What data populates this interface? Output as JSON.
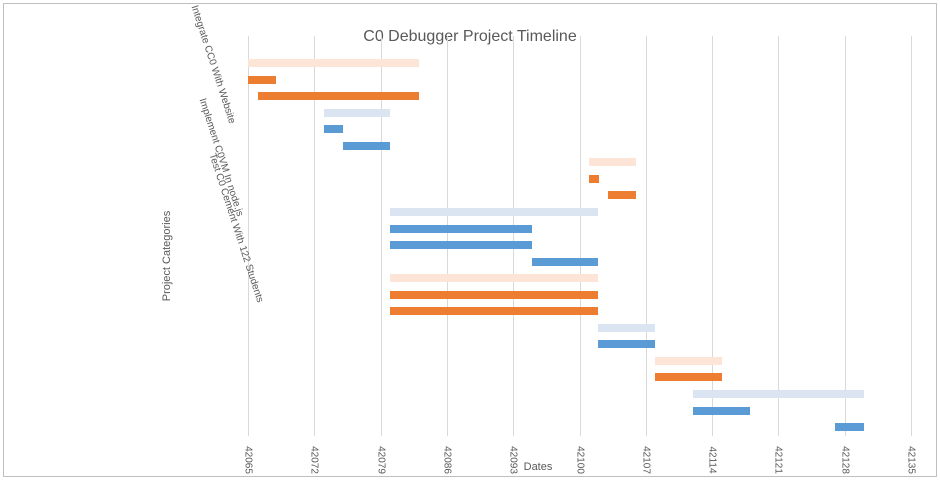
{
  "chart_data": {
    "type": "gantt-bar",
    "title": "C0 Debugger Project Timeline",
    "xlabel": "Dates",
    "ylabel": "Project Categories",
    "categories": [
      "Integrate CC0 With Website",
      "Implement C0VM In node.js",
      "Test C0 Cement With 122 Students"
    ],
    "x_ticks": [
      42065,
      42072,
      42079,
      42086,
      42093,
      42100,
      42107,
      42114,
      42121,
      42128,
      42135
    ],
    "x_range": [
      42065,
      42135
    ],
    "grid": "vertical",
    "legend": "none",
    "colors": {
      "orange": "#ED7D31",
      "orange_light": "#FCE4D6",
      "blue": "#5B9BD5",
      "blue_light": "#DBE5F1",
      "gridline": "#D9D9D9",
      "text": "#595959"
    },
    "bars": [
      {
        "start": 42065,
        "end": 42083,
        "color": "orange_light"
      },
      {
        "start": 42065,
        "end": 42068,
        "color": "orange"
      },
      {
        "start": 42066,
        "end": 42083,
        "color": "orange"
      },
      {
        "start": 42073,
        "end": 42080,
        "color": "blue_light"
      },
      {
        "start": 42073,
        "end": 42075,
        "color": "blue"
      },
      {
        "start": 42075,
        "end": 42080,
        "color": "blue"
      },
      {
        "start": 42101,
        "end": 42106,
        "color": "orange_light"
      },
      {
        "start": 42101,
        "end": 42102,
        "color": "orange"
      },
      {
        "start": 42103,
        "end": 42106,
        "color": "orange"
      },
      {
        "start": 42080,
        "end": 42102,
        "color": "blue_light"
      },
      {
        "start": 42080,
        "end": 42095,
        "color": "blue"
      },
      {
        "start": 42080,
        "end": 42095,
        "color": "blue"
      },
      {
        "start": 42095,
        "end": 42102,
        "color": "blue"
      },
      {
        "start": 42080,
        "end": 42102,
        "color": "orange_light"
      },
      {
        "start": 42080,
        "end": 42102,
        "color": "orange"
      },
      {
        "start": 42080,
        "end": 42102,
        "color": "orange"
      },
      {
        "start": 42102,
        "end": 42108,
        "color": "blue_light"
      },
      {
        "start": 42102,
        "end": 42108,
        "color": "blue"
      },
      {
        "start": 42108,
        "end": 42115,
        "color": "orange_light"
      },
      {
        "start": 42108,
        "end": 42115,
        "color": "orange"
      },
      {
        "start": 42112,
        "end": 42130,
        "color": "blue_light"
      },
      {
        "start": 42112,
        "end": 42118,
        "color": "blue"
      },
      {
        "start": 42127,
        "end": 42130,
        "color": "blue"
      }
    ]
  }
}
